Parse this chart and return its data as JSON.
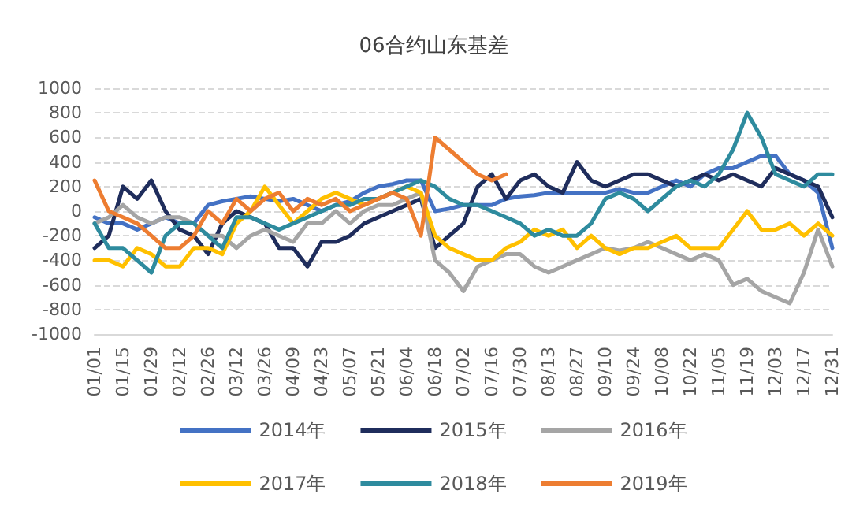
{
  "chart_data": {
    "type": "line",
    "title": "06合约山东基差",
    "categories": [
      "01/01",
      null,
      "01/15",
      null,
      "01/29",
      null,
      "02/12",
      null,
      "02/26",
      null,
      "03/12",
      null,
      "03/26",
      null,
      "04/09",
      null,
      "04/23",
      null,
      "05/07",
      null,
      "05/21",
      null,
      "06/04",
      null,
      "06/18",
      null,
      "07/02",
      null,
      "07/16",
      null,
      "07/30",
      null,
      "08/13",
      null,
      "08/27",
      null,
      "09/10",
      null,
      "09/24",
      null,
      "10/08",
      null,
      "10/22",
      null,
      "11/05",
      null,
      "11/19",
      null,
      "12/03",
      null,
      "12/17",
      null,
      "12/31"
    ],
    "series": [
      {
        "name": "2014年",
        "color": "#4472c4",
        "values": [
          -50,
          -100,
          -100,
          -150,
          -100,
          -50,
          -100,
          -100,
          50,
          80,
          100,
          120,
          100,
          80,
          100,
          50,
          0,
          50,
          80,
          150,
          200,
          220,
          250,
          250,
          0,
          20,
          50,
          50,
          50,
          100,
          120,
          130,
          150,
          150,
          150,
          150,
          150,
          180,
          150,
          150,
          200,
          250,
          200,
          300,
          350,
          350,
          400,
          450,
          450,
          300,
          250,
          150,
          -300
        ]
      },
      {
        "name": "2015年",
        "color": "#1f2d5c",
        "values": [
          -300,
          -200,
          200,
          100,
          250,
          0,
          -150,
          -200,
          -350,
          -100,
          0,
          -50,
          -100,
          -300,
          -300,
          -450,
          -250,
          -250,
          -200,
          -100,
          -50,
          0,
          50,
          100,
          -300,
          -200,
          -100,
          200,
          300,
          100,
          250,
          300,
          200,
          150,
          400,
          250,
          200,
          250,
          300,
          300,
          250,
          200,
          250,
          300,
          250,
          300,
          250,
          200,
          350,
          300,
          250,
          200,
          -50
        ]
      },
      {
        "name": "2016年",
        "color": "#a5a5a5",
        "values": [
          -100,
          -50,
          50,
          -50,
          -100,
          -50,
          -50,
          -100,
          -200,
          -200,
          -300,
          -200,
          -150,
          -200,
          -250,
          -100,
          -100,
          0,
          -100,
          0,
          50,
          50,
          100,
          150,
          -400,
          -500,
          -650,
          -450,
          -400,
          -350,
          -350,
          -450,
          -500,
          -450,
          -400,
          -350,
          -300,
          -320,
          -300,
          -250,
          -300,
          -350,
          -400,
          -350,
          -400,
          -600,
          -550,
          -650,
          -700,
          -750,
          -500,
          -150,
          -450
        ]
      },
      {
        "name": "2017年",
        "color": "#ffc000",
        "values": [
          -400,
          -400,
          -450,
          -300,
          -350,
          -450,
          -450,
          -300,
          -300,
          -350,
          -100,
          0,
          200,
          50,
          -100,
          0,
          100,
          150,
          100,
          50,
          100,
          150,
          200,
          150,
          -200,
          -300,
          -350,
          -400,
          -400,
          -300,
          -250,
          -150,
          -200,
          -150,
          -300,
          -200,
          -300,
          -350,
          -300,
          -300,
          -250,
          -200,
          -300,
          -300,
          -300,
          -150,
          0,
          -150,
          -150,
          -100,
          -200,
          -100,
          -200
        ]
      },
      {
        "name": "2018年",
        "color": "#2e8b9e",
        "values": [
          -100,
          -300,
          -300,
          -400,
          -500,
          -200,
          -100,
          -100,
          -200,
          -300,
          -50,
          -50,
          -100,
          -150,
          -100,
          -50,
          0,
          50,
          50,
          100,
          100,
          150,
          200,
          250,
          200,
          100,
          50,
          50,
          0,
          -50,
          -100,
          -200,
          -150,
          -200,
          -200,
          -100,
          100,
          150,
          100,
          0,
          100,
          200,
          250,
          200,
          300,
          500,
          800,
          600,
          300,
          250,
          200,
          300,
          300
        ]
      },
      {
        "name": "2019年",
        "color": "#ed7d31",
        "values": [
          250,
          0,
          -50,
          -100,
          -200,
          -300,
          -300,
          -200,
          0,
          -100,
          100,
          0,
          100,
          150,
          0,
          100,
          50,
          100,
          0,
          50,
          100,
          150,
          100,
          -200,
          600,
          500,
          400,
          300,
          250,
          300,
          null,
          null,
          null,
          null,
          null,
          null,
          null,
          null,
          null,
          null,
          null,
          null,
          null,
          null,
          null,
          null,
          null,
          null,
          null,
          null,
          null,
          null,
          null
        ]
      }
    ],
    "ylim": [
      -1000,
      1000
    ],
    "yticks": [
      -1000,
      -800,
      -600,
      -400,
      -200,
      0,
      200,
      400,
      600,
      800,
      1000
    ],
    "grid": "y",
    "legend": "bottom",
    "marker": "none",
    "line_style": "solid"
  }
}
